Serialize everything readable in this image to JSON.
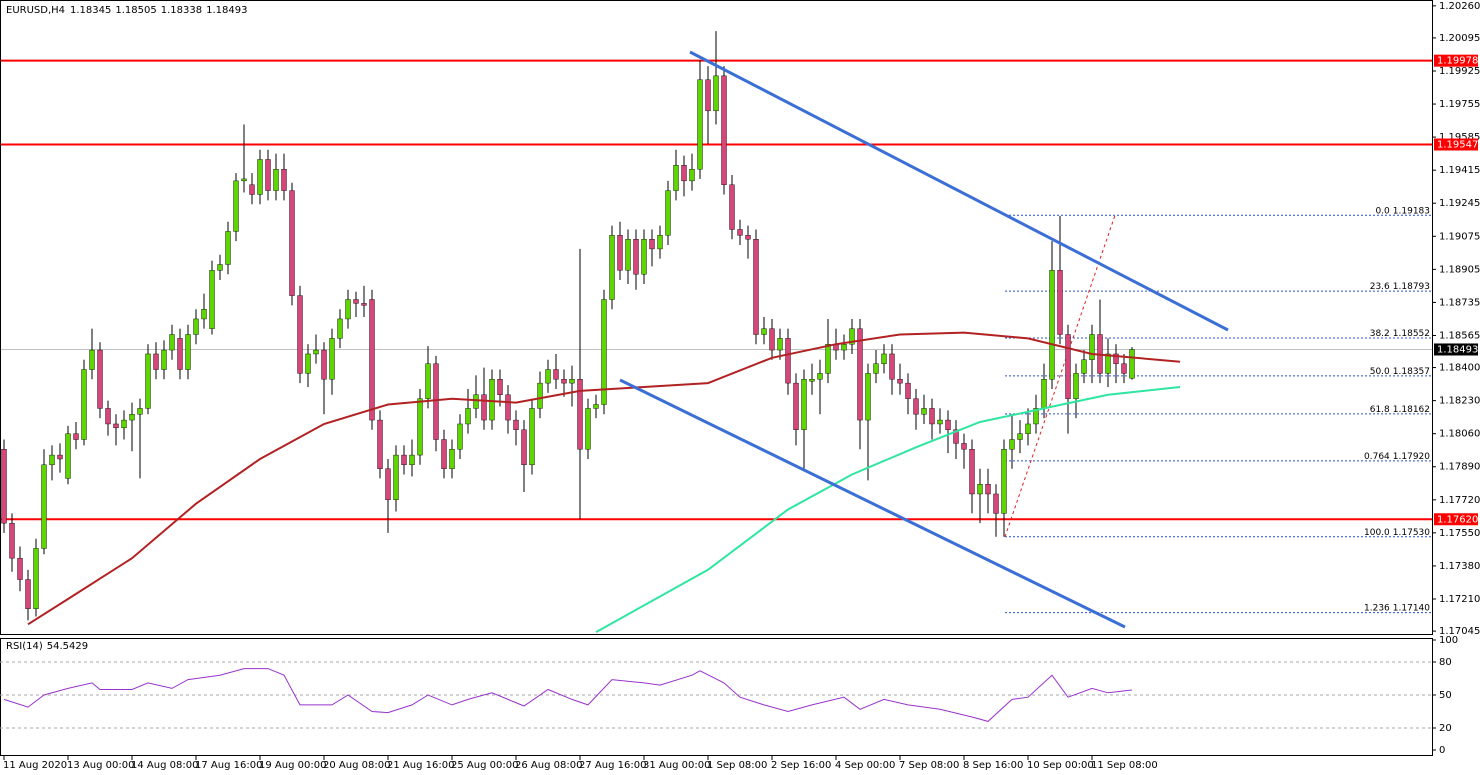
{
  "chart_data": {
    "type": "candlestick",
    "symbol": "EURUSD,H4",
    "xlim": [
      -0.5,
      178.5
    ],
    "ylim": [
      1.1703,
      1.2029
    ],
    "colors": {
      "up": "#5fd400",
      "down": "#d6467a"
    },
    "yticks": [
      {
        "value": 1.2026,
        "label": "1.20260"
      },
      1.20095,
      1.19925,
      1.19755,
      1.19585,
      1.19415,
      1.19245,
      1.19075,
      1.18905,
      1.18735,
      1.18565,
      {
        "value": 1.184,
        "label": "1.18400"
      },
      {
        "value": 1.1823,
        "label": "1.18230"
      },
      {
        "value": 1.1806,
        "label": "1.18060"
      },
      {
        "value": 1.1789,
        "label": "1.17890"
      },
      {
        "value": 1.1772,
        "label": "1.17720"
      },
      {
        "value": 1.1755,
        "label": "1.17550"
      },
      {
        "value": 1.1738,
        "label": "1.17380"
      },
      {
        "value": 1.1721,
        "label": "1.17210"
      },
      1.17045
    ],
    "xticks": [
      {
        "value": 0,
        "label": "11 Aug 2020"
      },
      {
        "value": 8,
        "label": "13 Aug 00:00"
      },
      {
        "value": 16,
        "label": "14 Aug 08:00"
      },
      {
        "value": 24,
        "label": "17 Aug 16:00"
      },
      {
        "value": 32,
        "label": "19 Aug 00:00"
      },
      {
        "value": 40,
        "label": "20 Aug 08:00"
      },
      {
        "value": 48,
        "label": "21 Aug 16:00"
      },
      {
        "value": 56,
        "label": "25 Aug 00:00"
      },
      {
        "value": 64,
        "label": "26 Aug 08:00"
      },
      {
        "value": 72,
        "label": "27 Aug 16:00"
      },
      {
        "value": 80,
        "label": "31 Aug 00:00"
      },
      {
        "value": 88,
        "label": "1 Sep 08:00"
      },
      {
        "value": 96,
        "label": "2 Sep 16:00"
      },
      {
        "value": 104,
        "label": "4 Sep 00:00"
      },
      {
        "value": 112,
        "label": "7 Sep 08:00"
      },
      {
        "value": 120,
        "label": "8 Sep 16:00"
      },
      {
        "value": 128,
        "label": "10 Sep 00:00"
      },
      {
        "value": 136,
        "label": "11 Sep 08:00"
      }
    ],
    "ohlc": [
      [
        1.1798,
        1.1803,
        1.1755,
        1.176
      ],
      [
        1.176,
        1.1765,
        1.1735,
        1.1742
      ],
      [
        1.1742,
        1.1748,
        1.1725,
        1.1731
      ],
      [
        1.1731,
        1.1736,
        1.171,
        1.1716
      ],
      [
        1.1716,
        1.1752,
        1.1712,
        1.1747
      ],
      [
        1.1747,
        1.1798,
        1.1744,
        1.179
      ],
      [
        1.179,
        1.18,
        1.1782,
        1.1795
      ],
      [
        1.1795,
        1.1801,
        1.1786,
        1.1793
      ],
      [
        1.1783,
        1.181,
        1.178,
        1.1806
      ],
      [
        1.1806,
        1.1812,
        1.1798,
        1.1803
      ],
      [
        1.1803,
        1.1844,
        1.18,
        1.1839
      ],
      [
        1.1839,
        1.186,
        1.1834,
        1.1849
      ],
      [
        1.1849,
        1.1853,
        1.1814,
        1.1819
      ],
      [
        1.1819,
        1.1823,
        1.1805,
        1.1811
      ],
      [
        1.1811,
        1.1816,
        1.18,
        1.1809
      ],
      [
        1.1809,
        1.1818,
        1.1803,
        1.1813
      ],
      [
        1.1813,
        1.1822,
        1.1797,
        1.1816
      ],
      [
        1.1816,
        1.1824,
        1.1783,
        1.1819
      ],
      [
        1.1819,
        1.1852,
        1.1816,
        1.1847
      ],
      [
        1.1847,
        1.1853,
        1.1834,
        1.1839
      ],
      [
        1.1839,
        1.1854,
        1.1834,
        1.1849
      ],
      [
        1.1849,
        1.1862,
        1.1844,
        1.1857
      ],
      [
        1.1855,
        1.186,
        1.1834,
        1.1839
      ],
      [
        1.1839,
        1.1862,
        1.1834,
        1.1857
      ],
      [
        1.1857,
        1.187,
        1.1852,
        1.1865
      ],
      [
        1.1865,
        1.1878,
        1.186,
        1.187
      ],
      [
        1.186,
        1.1895,
        1.1857,
        1.189
      ],
      [
        1.189,
        1.1898,
        1.1885,
        1.1893
      ],
      [
        1.1893,
        1.1915,
        1.1888,
        1.191
      ],
      [
        1.191,
        1.194,
        1.1905,
        1.1936
      ],
      [
        1.1936,
        1.1965,
        1.193,
        1.1937
      ],
      [
        1.1934,
        1.194,
        1.1924,
        1.1929
      ],
      [
        1.1929,
        1.1952,
        1.1924,
        1.1947
      ],
      [
        1.1947,
        1.1952,
        1.1926,
        1.1931
      ],
      [
        1.1931,
        1.195,
        1.1926,
        1.1942
      ],
      [
        1.1942,
        1.195,
        1.1926,
        1.1931
      ],
      [
        1.1931,
        1.1935,
        1.1872,
        1.1877
      ],
      [
        1.1877,
        1.1882,
        1.1832,
        1.1837
      ],
      [
        1.1837,
        1.1852,
        1.183,
        1.1847
      ],
      [
        1.1847,
        1.1857,
        1.1842,
        1.1849
      ],
      [
        1.1849,
        1.1853,
        1.1816,
        1.1834
      ],
      [
        1.1834,
        1.186,
        1.1826,
        1.1855
      ],
      [
        1.1855,
        1.187,
        1.185,
        1.1865
      ],
      [
        1.1865,
        1.188,
        1.186,
        1.1875
      ],
      [
        1.1875,
        1.1879,
        1.1866,
        1.1873
      ],
      [
        1.1873,
        1.1882,
        1.1866,
        1.1872
      ],
      [
        1.1875,
        1.188,
        1.1808,
        1.1813
      ],
      [
        1.1813,
        1.1818,
        1.1783,
        1.1788
      ],
      [
        1.1788,
        1.1793,
        1.1755,
        1.1772
      ],
      [
        1.1772,
        1.18,
        1.1766,
        1.1795
      ],
      [
        1.1795,
        1.18,
        1.1785,
        1.179
      ],
      [
        1.179,
        1.1803,
        1.1784,
        1.1795
      ],
      [
        1.1795,
        1.1829,
        1.179,
        1.1824
      ],
      [
        1.1824,
        1.1851,
        1.1819,
        1.1842
      ],
      [
        1.1842,
        1.1846,
        1.1797,
        1.1803
      ],
      [
        1.1803,
        1.1808,
        1.1783,
        1.1788
      ],
      [
        1.1788,
        1.1803,
        1.1783,
        1.1798
      ],
      [
        1.1798,
        1.1816,
        1.1793,
        1.1811
      ],
      [
        1.1811,
        1.1829,
        1.1806,
        1.1819
      ],
      [
        1.1819,
        1.1836,
        1.1814,
        1.1826
      ],
      [
        1.1826,
        1.184,
        1.1808,
        1.1813
      ],
      [
        1.1813,
        1.1839,
        1.1808,
        1.1834
      ],
      [
        1.1834,
        1.1839,
        1.182,
        1.1826
      ],
      [
        1.1826,
        1.1831,
        1.1806,
        1.1813
      ],
      [
        1.1813,
        1.1818,
        1.18,
        1.1808
      ],
      [
        1.1808,
        1.1813,
        1.1776,
        1.179
      ],
      [
        1.179,
        1.1824,
        1.1785,
        1.1819
      ],
      [
        1.1819,
        1.1838,
        1.1814,
        1.1832
      ],
      [
        1.1832,
        1.1844,
        1.1827,
        1.1839
      ],
      [
        1.1839,
        1.1847,
        1.1829,
        1.1834
      ],
      [
        1.1834,
        1.1839,
        1.1825,
        1.1832
      ],
      [
        1.1832,
        1.1841,
        1.182,
        1.1834
      ],
      [
        1.1834,
        1.1901,
        1.1762,
        1.1798
      ],
      [
        1.1798,
        1.1824,
        1.1793,
        1.1819
      ],
      [
        1.1819,
        1.1826,
        1.1814,
        1.1821
      ],
      [
        1.1821,
        1.188,
        1.1816,
        1.1875
      ],
      [
        1.1875,
        1.1913,
        1.187,
        1.1908
      ],
      [
        1.1908,
        1.1915,
        1.1885,
        1.189
      ],
      [
        1.189,
        1.1911,
        1.1883,
        1.1906
      ],
      [
        1.1906,
        1.1911,
        1.188,
        1.1888
      ],
      [
        1.1888,
        1.1911,
        1.1883,
        1.1906
      ],
      [
        1.1906,
        1.1911,
        1.1892,
        1.1901
      ],
      [
        1.1901,
        1.1913,
        1.1896,
        1.1908
      ],
      [
        1.1908,
        1.1936,
        1.1903,
        1.1931
      ],
      [
        1.1931,
        1.1952,
        1.1926,
        1.1944
      ],
      [
        1.1944,
        1.1949,
        1.1928,
        1.1936
      ],
      [
        1.1936,
        1.195,
        1.1931,
        1.1942
      ],
      [
        1.1942,
        1.1998,
        1.1937,
        1.1988
      ],
      [
        1.1988,
        1.1995,
        1.1955,
        1.1972
      ],
      [
        1.1972,
        1.2013,
        1.1965,
        1.199
      ],
      [
        1.199,
        1.1995,
        1.1929,
        1.1934
      ],
      [
        1.1934,
        1.1939,
        1.1906,
        1.1911
      ],
      [
        1.1911,
        1.1916,
        1.1903,
        1.1908
      ],
      [
        1.1908,
        1.1913,
        1.1896,
        1.1906
      ],
      [
        1.1906,
        1.1911,
        1.1852,
        1.1857
      ],
      [
        1.1857,
        1.1866,
        1.1852,
        1.186
      ],
      [
        1.186,
        1.1865,
        1.1844,
        1.1849
      ],
      [
        1.1849,
        1.186,
        1.1844,
        1.1855
      ],
      [
        1.1855,
        1.186,
        1.1826,
        1.1832
      ],
      [
        1.1832,
        1.1837,
        1.18,
        1.1808
      ],
      [
        1.1808,
        1.1839,
        1.1788,
        1.1834
      ],
      [
        1.1833,
        1.1842,
        1.1826,
        1.1834
      ],
      [
        1.1834,
        1.1844,
        1.1816,
        1.1837
      ],
      [
        1.1837,
        1.1865,
        1.1832,
        1.1852
      ],
      [
        1.1852,
        1.186,
        1.1844,
        1.1849
      ],
      [
        1.1849,
        1.1857,
        1.1844,
        1.1852
      ],
      [
        1.1852,
        1.1865,
        1.1847,
        1.186
      ],
      [
        1.186,
        1.1865,
        1.1798,
        1.1813
      ],
      [
        1.1813,
        1.1842,
        1.1782,
        1.1837
      ],
      [
        1.1837,
        1.1849,
        1.1832,
        1.1842
      ],
      [
        1.1842,
        1.1852,
        1.1837,
        1.1847
      ],
      [
        1.1847,
        1.1852,
        1.1826,
        1.1834
      ],
      [
        1.1834,
        1.1842,
        1.1826,
        1.1832
      ],
      [
        1.1832,
        1.1837,
        1.1816,
        1.1824
      ],
      [
        1.1824,
        1.1829,
        1.1808,
        1.1816
      ],
      [
        1.1816,
        1.1826,
        1.1811,
        1.1819
      ],
      [
        1.1819,
        1.1824,
        1.1803,
        1.1811
      ],
      [
        1.1811,
        1.1819,
        1.1806,
        1.1813
      ],
      [
        1.1813,
        1.1818,
        1.1796,
        1.1808
      ],
      [
        1.1808,
        1.1813,
        1.1793,
        1.1801
      ],
      [
        1.1801,
        1.1806,
        1.1788,
        1.1798
      ],
      [
        1.1798,
        1.1803,
        1.1765,
        1.1775
      ],
      [
        1.1775,
        1.1788,
        1.176,
        1.178
      ],
      [
        1.178,
        1.1788,
        1.1765,
        1.1775
      ],
      [
        1.1775,
        1.178,
        1.1753,
        1.1765
      ],
      [
        1.1765,
        1.1803,
        1.1753,
        1.1798
      ],
      [
        1.1798,
        1.1816,
        1.1788,
        1.1803
      ],
      [
        1.1803,
        1.1813,
        1.1796,
        1.1806
      ],
      [
        1.1806,
        1.1819,
        1.18,
        1.1811
      ],
      [
        1.1811,
        1.1826,
        1.1806,
        1.1819
      ],
      [
        1.1819,
        1.1842,
        1.1814,
        1.1834
      ],
      [
        1.1834,
        1.1905,
        1.1829,
        1.189
      ],
      [
        1.189,
        1.1918,
        1.1852,
        1.1857
      ],
      [
        1.1857,
        1.1862,
        1.1806,
        1.1824
      ],
      [
        1.1824,
        1.1842,
        1.1814,
        1.1837
      ],
      [
        1.1837,
        1.1849,
        1.1832,
        1.1844
      ],
      [
        1.1844,
        1.1862,
        1.1832,
        1.1857
      ],
      [
        1.1857,
        1.1875,
        1.1832,
        1.1837
      ],
      [
        1.1837,
        1.1855,
        1.183,
        1.1847
      ],
      [
        1.1847,
        1.1852,
        1.1832,
        1.1842
      ],
      [
        1.1842,
        1.1847,
        1.1832,
        1.1837
      ],
      [
        1.18345,
        1.18505,
        1.18338,
        1.18493
      ]
    ],
    "overlays": [
      {
        "type": "line",
        "color": "#b22222",
        "x": [
          3,
          8,
          16,
          24,
          32,
          40,
          48,
          56,
          64,
          72,
          80,
          88,
          96,
          104,
          112,
          120,
          128,
          136,
          147
        ],
        "values": [
          1.1708,
          1.1721,
          1.1742,
          1.177,
          1.1793,
          1.1811,
          1.1821,
          1.1824,
          1.1822,
          1.1828,
          1.183,
          1.1832,
          1.1845,
          1.1852,
          1.1857,
          1.1858,
          1.1855,
          1.1847,
          1.1843
        ]
      },
      {
        "type": "line",
        "color": "#2ee6a0",
        "x": [
          74,
          88,
          98,
          106,
          114,
          122,
          130,
          138,
          147
        ],
        "values": [
          1.1704,
          1.1736,
          1.1767,
          1.1785,
          1.1799,
          1.1812,
          1.1819,
          1.1826,
          1.183
        ]
      }
    ],
    "levels": {
      "color": "#ff0000",
      "values": [
        1.19978,
        1.19547,
        {
          "value": 1.1762,
          "label": "1.17620"
        }
      ]
    },
    "fib": [
      {
        "level": "0.0",
        "price": 1.19183
      },
      {
        "level": "23.6",
        "price": 1.18793
      },
      {
        "level": "38.2",
        "price": 1.18552
      },
      {
        "level": "50.0",
        "price": 1.18357
      },
      {
        "level": "61.8",
        "price": 1.18162
      },
      {
        "level": "0.764",
        "price": {
          "value": 1.1792,
          "label": "1.17920"
        }
      },
      {
        "level": "100.0",
        "price": {
          "value": 1.1753,
          "label": "1.17530"
        }
      },
      {
        "level": "1.236",
        "price": {
          "value": 1.1714,
          "label": "1.17140"
        }
      }
    ],
    "rsi": {
      "type": "line",
      "title": "RSI(14)",
      "color": "#9932cc",
      "ylim": [
        0,
        100
      ],
      "yticks": [
        100,
        80,
        50,
        20,
        0
      ],
      "x": [
        0,
        3,
        5,
        8,
        11,
        12,
        16,
        18,
        21,
        23,
        27,
        30,
        33,
        35,
        37,
        41,
        43,
        46,
        48,
        51,
        53,
        56,
        58,
        61,
        65,
        68,
        71,
        73,
        76,
        80,
        82,
        86,
        87,
        90,
        92,
        95,
        98,
        101,
        105,
        107,
        110,
        113,
        117,
        121,
        123,
        126,
        128,
        131,
        133,
        136,
        138,
        141
      ],
      "values": [
        46,
        39,
        50,
        56,
        61,
        55,
        55,
        61,
        56,
        64,
        68,
        74,
        74,
        68,
        41,
        41,
        50,
        35,
        34,
        41,
        50,
        41,
        46,
        52,
        40,
        55,
        46,
        41,
        64,
        61,
        59,
        68,
        72,
        61,
        48,
        41,
        35,
        41,
        48,
        37,
        46,
        41,
        37,
        30,
        26,
        46,
        48,
        68,
        48,
        56,
        52,
        54.5429
      ]
    }
  }
}
